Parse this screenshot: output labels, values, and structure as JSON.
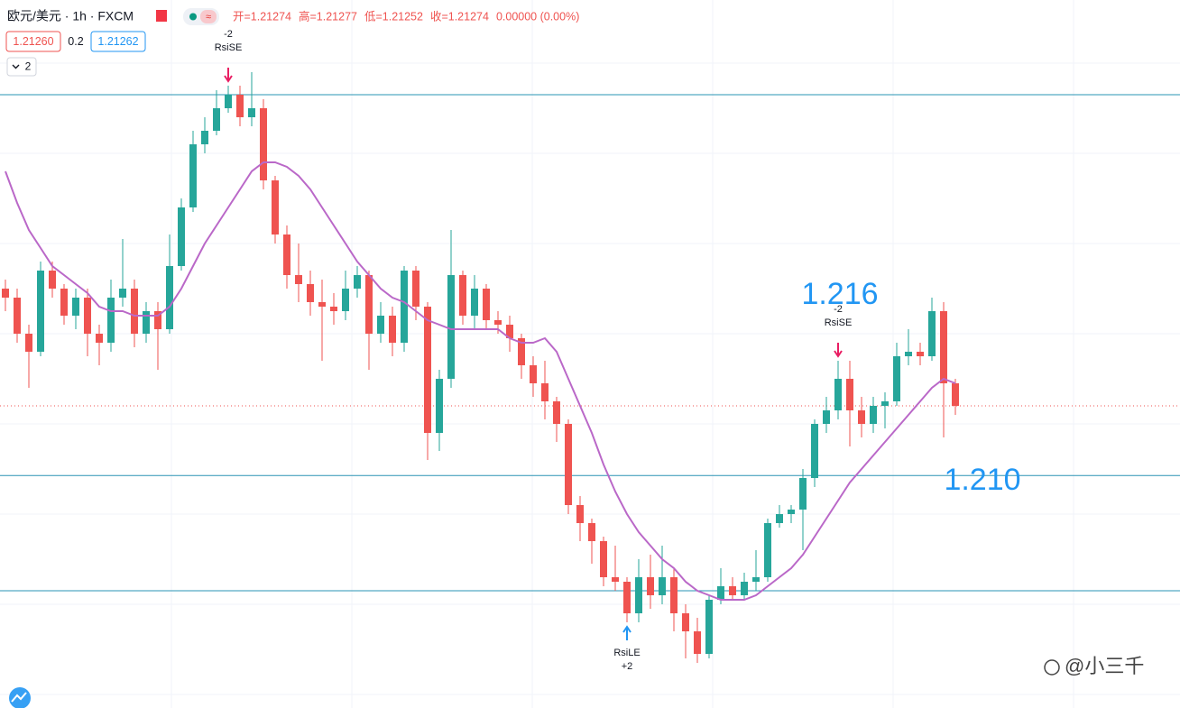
{
  "chart_data": {
    "type": "candlestick",
    "title": "欧元/美元 · 1h · FXCM",
    "ohlc_legend": [
      "开=1.21274",
      "高=1.21277",
      "低=1.21252",
      "收=1.21274",
      "0.00000 (0.00%)"
    ],
    "price_boxes": [
      "1.21260",
      "0.2",
      "1.21262"
    ],
    "indicator_count": "2",
    "watermark": "@小三千",
    "up_color": "#26a69a",
    "down_color": "#ef5350",
    "ylim": [
      1.20072,
      1.22898
    ],
    "open": [
      1.21746,
      1.2171,
      1.21566,
      1.21494,
      1.21818,
      1.21746,
      1.21638,
      1.2171,
      1.21566,
      1.2153,
      1.2171,
      1.21746,
      1.21566,
      1.21656,
      1.21584,
      1.21836,
      1.2207,
      1.22322,
      1.22376,
      1.22466,
      1.2252,
      1.2243,
      1.22466,
      1.22178,
      1.21962,
      1.218,
      1.21764,
      1.21692,
      1.21674,
      1.21656,
      1.21746,
      1.218,
      1.21566,
      1.21638,
      1.2153,
      1.21818,
      1.21674,
      1.2117,
      1.21386,
      1.218,
      1.21638,
      1.21746,
      1.2162,
      1.21602,
      1.21548,
      1.2144,
      1.21368,
      1.21296,
      1.21206,
      1.20882,
      1.2081,
      1.20738,
      1.20594,
      1.20576,
      1.2045,
      1.20594,
      1.20522,
      1.20594,
      1.2045,
      1.20378,
      1.20288,
      1.20504,
      1.20558,
      1.20522,
      1.20576,
      1.20594,
      1.2081,
      1.20846,
      1.20864,
      1.2099,
      1.21206,
      1.2126,
      1.21386,
      1.2126,
      1.21206,
      1.21278,
      1.21296,
      1.21476,
      1.21494,
      1.21476,
      1.21656,
      1.21368
    ],
    "high": [
      1.21782,
      1.21746,
      1.21602,
      1.21854,
      1.21854,
      1.21764,
      1.21746,
      1.21746,
      1.21602,
      1.21782,
      1.21944,
      1.21782,
      1.21692,
      1.21692,
      1.21962,
      1.22106,
      1.22376,
      1.2243,
      1.22538,
      1.22556,
      1.22556,
      1.2261,
      1.22502,
      1.22196,
      1.21998,
      1.21926,
      1.21818,
      1.21782,
      1.21728,
      1.21818,
      1.21836,
      1.21818,
      1.21692,
      1.21674,
      1.21836,
      1.21836,
      1.21692,
      1.21422,
      1.2198,
      1.21818,
      1.218,
      1.21764,
      1.21656,
      1.21638,
      1.21566,
      1.21476,
      1.21458,
      1.21314,
      1.21224,
      1.20918,
      1.20828,
      1.20756,
      1.2072,
      1.20594,
      1.20666,
      1.20684,
      1.2072,
      1.2063,
      1.20486,
      1.20432,
      1.20522,
      1.2063,
      1.20594,
      1.20612,
      1.20702,
      1.20828,
      1.20882,
      1.20882,
      1.21026,
      1.21224,
      1.21314,
      1.21458,
      1.21458,
      1.21314,
      1.21314,
      1.21332,
      1.2153,
      1.21584,
      1.2153,
      1.2171,
      1.21692,
      1.21386
    ],
    "low": [
      1.21656,
      1.2153,
      1.2135,
      1.21476,
      1.2171,
      1.21602,
      1.21584,
      1.21476,
      1.2144,
      1.21494,
      1.21674,
      1.21512,
      1.2153,
      1.21422,
      1.21566,
      1.21818,
      1.22052,
      1.22286,
      1.22358,
      1.22448,
      1.22394,
      1.22394,
      1.22142,
      1.21926,
      1.21746,
      1.21692,
      1.21638,
      1.21458,
      1.21602,
      1.2162,
      1.2171,
      1.21422,
      1.2153,
      1.21476,
      1.21494,
      1.2162,
      1.21062,
      1.21098,
      1.2135,
      1.21602,
      1.21584,
      1.21584,
      1.21566,
      1.21494,
      1.21386,
      1.21314,
      1.21224,
      1.21134,
      1.20846,
      1.20738,
      1.20648,
      1.20558,
      1.2054,
      1.20414,
      1.20414,
      1.20468,
      1.20486,
      1.20378,
      1.2027,
      1.20252,
      1.2027,
      1.20486,
      1.20504,
      1.20504,
      1.2054,
      1.20576,
      1.20792,
      1.2081,
      1.20702,
      1.20954,
      1.2117,
      1.21224,
      1.21116,
      1.21152,
      1.2117,
      1.21188,
      1.21278,
      1.2144,
      1.2144,
      1.21458,
      1.21152,
      1.21242
    ],
    "close": [
      1.2171,
      1.21566,
      1.21494,
      1.21818,
      1.21746,
      1.21638,
      1.2171,
      1.21566,
      1.2153,
      1.2171,
      1.21746,
      1.21566,
      1.21656,
      1.21584,
      1.21836,
      1.2207,
      1.22322,
      1.22376,
      1.22466,
      1.2252,
      1.2243,
      1.22466,
      1.22178,
      1.21962,
      1.218,
      1.21764,
      1.21692,
      1.21674,
      1.21656,
      1.21746,
      1.218,
      1.21566,
      1.21638,
      1.2153,
      1.21818,
      1.21674,
      1.2117,
      1.21386,
      1.218,
      1.21638,
      1.21746,
      1.2162,
      1.21602,
      1.21548,
      1.2144,
      1.21368,
      1.21296,
      1.21206,
      1.20882,
      1.2081,
      1.20738,
      1.20594,
      1.20576,
      1.2045,
      1.20594,
      1.20522,
      1.20594,
      1.2045,
      1.20378,
      1.20288,
      1.20504,
      1.20558,
      1.20522,
      1.20576,
      1.20594,
      1.2081,
      1.20846,
      1.20864,
      1.2099,
      1.21206,
      1.2126,
      1.21386,
      1.2126,
      1.21206,
      1.21278,
      1.21296,
      1.21476,
      1.21494,
      1.21476,
      1.21656,
      1.21368,
      1.21278
    ],
    "moving_average": {
      "color": "#ba68c8",
      "values": [
        1.22214,
        1.22088,
        1.2198,
        1.21908,
        1.21836,
        1.218,
        1.21764,
        1.21728,
        1.21674,
        1.21656,
        1.21656,
        1.21638,
        1.21638,
        1.21638,
        1.21674,
        1.21746,
        1.21836,
        1.21926,
        1.21998,
        1.2207,
        1.22142,
        1.22214,
        1.2225,
        1.2225,
        1.22232,
        1.22196,
        1.22142,
        1.2207,
        1.21998,
        1.21926,
        1.21854,
        1.218,
        1.21746,
        1.2171,
        1.21692,
        1.21656,
        1.2162,
        1.21602,
        1.21584,
        1.21584,
        1.21584,
        1.21584,
        1.21584,
        1.21548,
        1.2153,
        1.2153,
        1.21548,
        1.21494,
        1.21386,
        1.21278,
        1.2117,
        1.21044,
        1.20936,
        1.20846,
        1.20774,
        1.2072,
        1.20666,
        1.2063,
        1.20576,
        1.2054,
        1.20522,
        1.20504,
        1.20504,
        1.20504,
        1.20522,
        1.20558,
        1.20594,
        1.2063,
        1.20684,
        1.20756,
        1.20828,
        1.209,
        1.20972,
        1.21026,
        1.2108,
        1.21134,
        1.21188,
        1.21242,
        1.21296,
        1.2135,
        1.21386,
        1.21368
      ]
    },
    "horizontal_lines": {
      "color": "#2a94b4",
      "values": [
        1.2252,
        1.21,
        1.2054
      ]
    },
    "annotations": [
      "1.216",
      "1.210"
    ],
    "signals": [
      {
        "index": 19,
        "side": "short",
        "name": "RsiSE",
        "qty": "-2"
      },
      {
        "index": 53,
        "side": "long",
        "name": "RsiLE",
        "qty": "+2"
      },
      {
        "index": 71,
        "side": "short",
        "name": "RsiSE",
        "qty": "-2"
      }
    ]
  }
}
